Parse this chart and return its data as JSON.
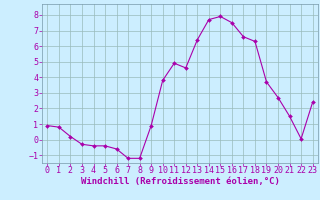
{
  "x": [
    0,
    1,
    2,
    3,
    4,
    5,
    6,
    7,
    8,
    9,
    10,
    11,
    12,
    13,
    14,
    15,
    16,
    17,
    18,
    19,
    20,
    21,
    22,
    23
  ],
  "y": [
    0.9,
    0.8,
    0.2,
    -0.3,
    -0.4,
    -0.4,
    -0.6,
    -1.2,
    -1.2,
    0.9,
    3.8,
    4.9,
    4.6,
    6.4,
    7.7,
    7.9,
    7.5,
    6.6,
    6.3,
    3.7,
    2.7,
    1.5,
    0.05,
    2.4
  ],
  "line_color": "#aa00aa",
  "marker": "D",
  "marker_size": 2,
  "bg_color": "#cceeff",
  "grid_color": "#99bbbb",
  "xlabel": "Windchill (Refroidissement éolien,°C)",
  "xlim": [
    -0.5,
    23.5
  ],
  "ylim": [
    -1.5,
    8.7
  ],
  "xticks": [
    0,
    1,
    2,
    3,
    4,
    5,
    6,
    7,
    8,
    9,
    10,
    11,
    12,
    13,
    14,
    15,
    16,
    17,
    18,
    19,
    20,
    21,
    22,
    23
  ],
  "yticks": [
    -1,
    0,
    1,
    2,
    3,
    4,
    5,
    6,
    7,
    8
  ],
  "tick_color": "#aa00aa",
  "label_color": "#aa00aa",
  "xlabel_fontsize": 6.5,
  "tick_fontsize": 6,
  "spine_color": "#7799aa"
}
